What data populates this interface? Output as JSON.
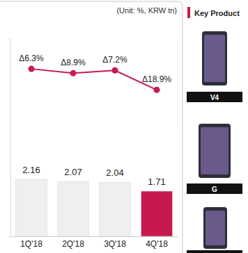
{
  "chart_data": {
    "type": "bar",
    "subtitle": "(Unit: %, KRW tn)",
    "categories": [
      "1Q'18",
      "2Q'18",
      "3Q'18",
      "4Q'18"
    ],
    "values": [
      2.16,
      2.07,
      2.04,
      1.71
    ],
    "colors": [
      "#efefef",
      "#efefef",
      "#efefef",
      "#c8194f"
    ],
    "data_labels": true,
    "ylim": [
      0,
      7.5
    ],
    "yticks": [
      0
    ],
    "y2lim": [
      -40,
      10
    ],
    "y2ticks": [],
    "tick_labels": "x",
    "series": [
      {
        "name": null,
        "type": "line",
        "axis": "y2",
        "color": "#c8194f",
        "marker": "circle",
        "values": [
          -6.3,
          -8.9,
          -7.2,
          -18.9
        ],
        "value_labels": [
          "Δ6.3%",
          "Δ8.9%",
          "Δ7.2%",
          "Δ18.9%"
        ]
      }
    ]
  },
  "sidebar": {
    "title": "Key Product",
    "products": [
      "V4",
      "G"
    ]
  }
}
